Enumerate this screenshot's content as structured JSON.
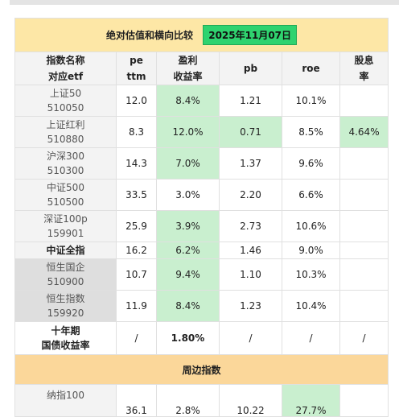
{
  "title": "绝对估值和横向比较",
  "date_badge": "2025年11月07日",
  "headers": {
    "name_line1": "指数名称",
    "name_line2": "对应etf",
    "pe_line1": "pe",
    "pe_line2": "ttm",
    "yield_line1": "盈利",
    "yield_line2": "收益率",
    "pb": "pb",
    "roe": "roe",
    "div_line1": "股息",
    "div_line2": "率"
  },
  "rows": [
    {
      "name": "上证50",
      "etf": "510050",
      "pe": "12.0",
      "yield": "8.4%",
      "pb": "1.21",
      "roe": "10.1%",
      "div": ""
    },
    {
      "name": "上证红利",
      "etf": "510880",
      "pe": "8.3",
      "yield": "12.0%",
      "pb": "0.71",
      "roe": "8.5%",
      "div": "4.64%"
    },
    {
      "name": "沪深300",
      "etf": "510300",
      "pe": "14.3",
      "yield": "7.0%",
      "pb": "1.37",
      "roe": "9.6%",
      "div": ""
    },
    {
      "name": "中证500",
      "etf": "510500",
      "pe": "33.5",
      "yield": "3.0%",
      "pb": "2.20",
      "roe": "6.6%",
      "div": ""
    },
    {
      "name": "深证100p",
      "etf": "159901",
      "pe": "25.9",
      "yield": "3.9%",
      "pb": "2.73",
      "roe": "10.6%",
      "div": ""
    },
    {
      "name": "中证全指",
      "etf": "",
      "pe": "16.2",
      "yield": "6.2%",
      "pb": "1.46",
      "roe": "9.0%",
      "div": ""
    },
    {
      "name": "恒生国企",
      "etf": "510900",
      "pe": "10.7",
      "yield": "9.4%",
      "pb": "1.10",
      "roe": "10.3%",
      "div": ""
    },
    {
      "name": "恒生指数",
      "etf": "159920",
      "pe": "11.9",
      "yield": "8.4%",
      "pb": "1.23",
      "roe": "10.4%",
      "div": ""
    }
  ],
  "bond": {
    "name_line1": "十年期",
    "name_line2": "国债收益率",
    "pe": "/",
    "yield": "1.80%",
    "pb": "/",
    "roe": "/",
    "div": "/"
  },
  "section_title": "周边指数",
  "partial_row": {
    "name": "纳指100",
    "pe": "36.1",
    "yield": "2.8%",
    "pb": "10.22",
    "roe": "27.7%"
  },
  "colors": {
    "title_bg": "#fde7a6",
    "badge": "#2fd36f",
    "good": "#c9efcf",
    "section_bg": "#fbd79a"
  }
}
